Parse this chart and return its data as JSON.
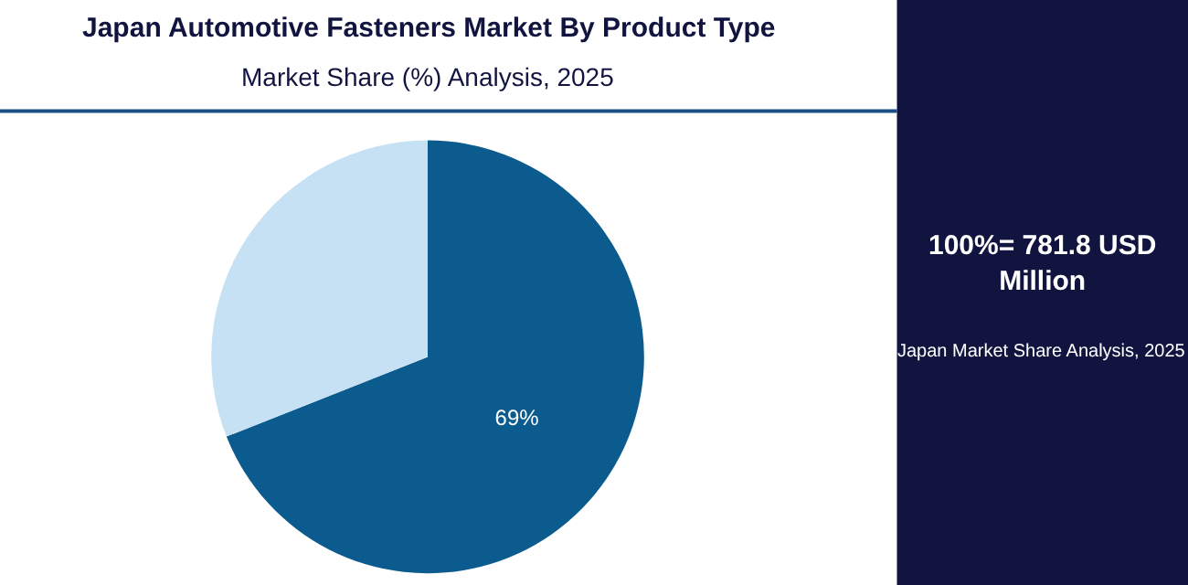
{
  "chart_data": {
    "type": "pie",
    "title": "Japan Automotive Fasteners Market By Product Type",
    "subtitle": "Market Share (%) Analysis, 2025",
    "categories": [
      null,
      null
    ],
    "values": [
      69,
      31
    ],
    "colors": [
      "#0b5b8f",
      "#c5e1f3"
    ],
    "value_labels": [
      "69%",
      null
    ],
    "annotations": [
      "100%= 781.8 USD Million",
      "Japan Market Share Analysis, 2025"
    ]
  }
}
